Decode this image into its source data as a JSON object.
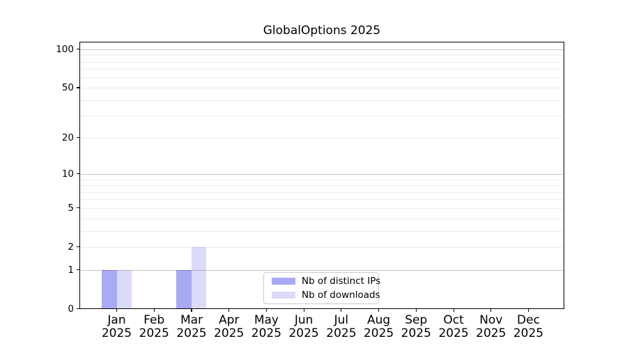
{
  "figure": {
    "background": "#ffffff"
  },
  "title": "GlobalOptions 2025",
  "chart_data": {
    "type": "bar",
    "title": "GlobalOptions 2025",
    "categories": [
      "Jan 2025",
      "Feb 2025",
      "Mar 2025",
      "Apr 2025",
      "May 2025",
      "Jun 2025",
      "Jul 2025",
      "Aug 2025",
      "Sep 2025",
      "Oct 2025",
      "Nov 2025",
      "Dec 2025"
    ],
    "series": [
      {
        "name": "Nb of distinct IPs",
        "color": "#a9a9f4",
        "values": [
          1,
          0,
          1,
          0,
          0,
          0,
          0,
          0,
          0,
          0,
          0,
          0
        ]
      },
      {
        "name": "Nb of downloads",
        "color": "#dbdbf9",
        "values": [
          1,
          0,
          2,
          0,
          0,
          0,
          0,
          0,
          0,
          0,
          0,
          0
        ]
      }
    ],
    "xlabel": "",
    "ylabel": "",
    "y_axis": {
      "scale": "log1p",
      "labeled_ticks": [
        0,
        1,
        2,
        5,
        10,
        20,
        50,
        100
      ],
      "major_gridlines": [
        1,
        10,
        100
      ],
      "minor_gridlines": [
        2,
        3,
        4,
        5,
        6,
        7,
        8,
        9,
        20,
        30,
        40,
        50,
        60,
        70,
        80,
        90
      ],
      "ymin": 0,
      "ymax": 115
    },
    "grid": true,
    "legend_position": "lower center",
    "major_grid_color": "rgba(0,0,0,0.22)",
    "minor_grid_color": "rgba(0,0,0,0.08)"
  }
}
